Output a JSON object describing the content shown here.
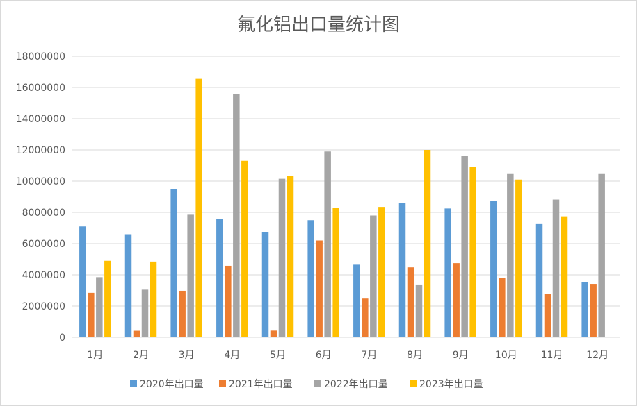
{
  "chart_data": {
    "type": "bar",
    "title": "氟化铝出口量统计图",
    "xlabel": "",
    "ylabel": "",
    "categories": [
      "1月",
      "2月",
      "3月",
      "4月",
      "5月",
      "6月",
      "7月",
      "8月",
      "9月",
      "10月",
      "11月",
      "12月"
    ],
    "ylim": [
      0,
      18000000
    ],
    "yticks": [
      0,
      2000000,
      4000000,
      6000000,
      8000000,
      10000000,
      12000000,
      14000000,
      16000000,
      18000000
    ],
    "ytick_labels": [
      "0",
      "2000000",
      "4000000",
      "6000000",
      "8000000",
      "10000000",
      "12000000",
      "14000000",
      "16000000",
      "18000000"
    ],
    "grid": true,
    "legend_position": "bottom",
    "series": [
      {
        "name": "2020年出口量",
        "color": "#5B9BD5",
        "values": [
          7100000,
          6600000,
          9500000,
          7600000,
          6750000,
          7500000,
          4650000,
          8600000,
          8250000,
          8750000,
          7250000,
          3550000
        ]
      },
      {
        "name": "2021年出口量",
        "color": "#ED7D31",
        "values": [
          2850000,
          420000,
          2980000,
          4580000,
          430000,
          6200000,
          2480000,
          4480000,
          4750000,
          3820000,
          2800000,
          3420000
        ]
      },
      {
        "name": "2022年出口量",
        "color": "#A5A5A5",
        "values": [
          3850000,
          3050000,
          7850000,
          15600000,
          10150000,
          11900000,
          7800000,
          3380000,
          11600000,
          10500000,
          8820000,
          10500000
        ]
      },
      {
        "name": "2023年出口量",
        "color": "#FFC000",
        "values": [
          4900000,
          4850000,
          16550000,
          11300000,
          10350000,
          8300000,
          8350000,
          12000000,
          10900000,
          10100000,
          7750000,
          null
        ]
      }
    ]
  }
}
